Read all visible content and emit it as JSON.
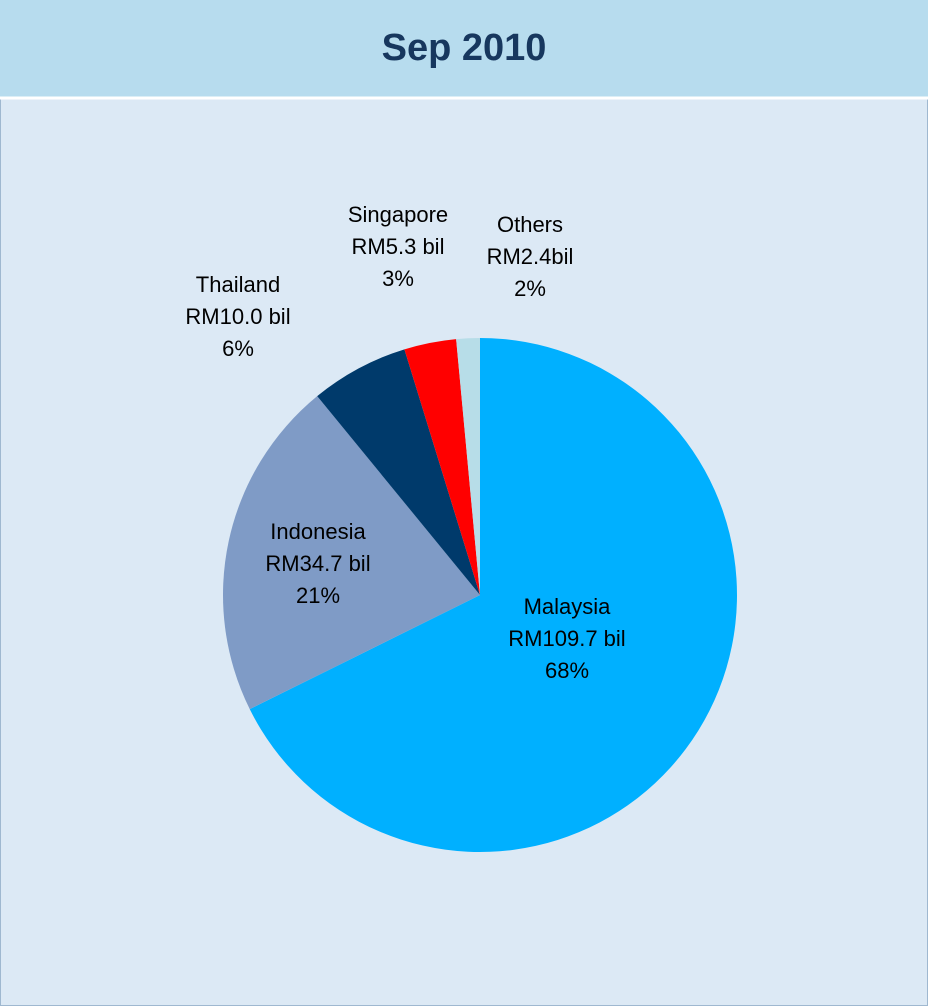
{
  "chart_data": {
    "type": "pie",
    "title": "Sep 2010",
    "categories": [
      "Malaysia",
      "Indonesia",
      "Thailand",
      "Singapore",
      "Others"
    ],
    "values": [
      109.7,
      34.7,
      10.0,
      5.3,
      2.4
    ],
    "value_labels": [
      "RM109.7 bil",
      "RM34.7 bil",
      "RM10.0 bil",
      "RM5.3 bil",
      "RM2.4bil"
    ],
    "percent_labels": [
      "68%",
      "21%",
      "6%",
      "3%",
      "2%"
    ],
    "colors": [
      "#00b0ff",
      "#7f9bc6",
      "#003a6b",
      "#ff0000",
      "#b7dde8"
    ]
  }
}
